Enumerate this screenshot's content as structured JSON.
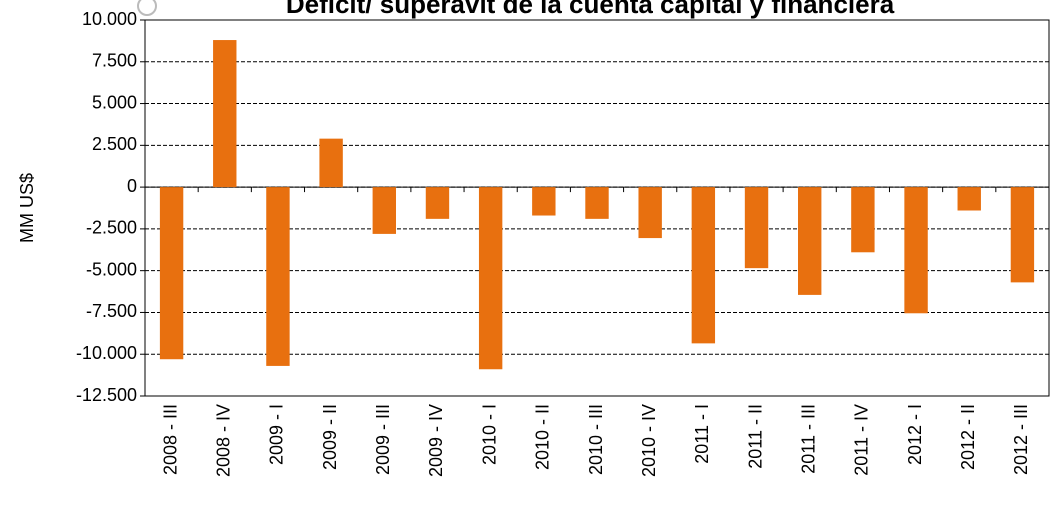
{
  "chart_data": {
    "type": "bar",
    "title": "Déficit/ superávit de la cuenta capital y financiera",
    "y_label": "MM US$",
    "categories": [
      "2008 - III",
      "2008 - IV",
      "2009 - I",
      "2009 - II",
      "2009 - III",
      "2009 - IV",
      "2010 - I",
      "2010 - II",
      "2010 - III",
      "2010 - IV",
      "2011 - I",
      "2011 - II",
      "2011 - III",
      "2011 - IV",
      "2012 - I",
      "2012 - II",
      "2012 - III"
    ],
    "values": [
      -10300,
      8800,
      -10700,
      2900,
      -2800,
      -1900,
      -10900,
      -1700,
      -1900,
      -3050,
      -9350,
      -4850,
      -6450,
      -3900,
      -7550,
      -1400,
      -5700
    ],
    "color": "#e8700f",
    "ylim": [
      -12500,
      10000
    ],
    "yticks": [
      {
        "value": -12500,
        "label": "-12.500"
      },
      {
        "value": -10000,
        "label": "-10.000"
      },
      {
        "value": -7500,
        "label": "-7.500"
      },
      {
        "value": -5000,
        "label": "-5.000"
      },
      {
        "value": -2500,
        "label": "-2.500"
      },
      0,
      {
        "value": 2500,
        "label": "2.500"
      },
      {
        "value": 5000,
        "label": "5.000"
      },
      {
        "value": 7500,
        "label": "7.500"
      },
      {
        "value": 10000,
        "label": "10.000"
      }
    ],
    "grid": true
  }
}
